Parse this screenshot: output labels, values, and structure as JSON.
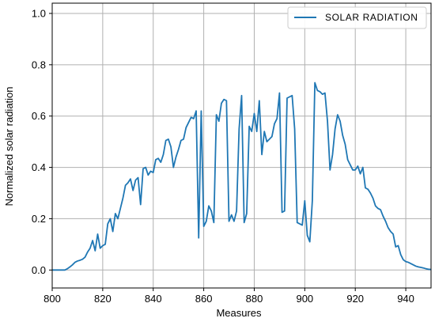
{
  "chart_data": {
    "type": "line",
    "title": "",
    "xlabel": "Measures",
    "ylabel": "Normalized solar radiation",
    "xlim": [
      800,
      950
    ],
    "ylim": [
      -0.07,
      1.04
    ],
    "xticks": [
      800,
      820,
      840,
      860,
      880,
      900,
      920,
      940
    ],
    "xtick_labels": [
      "800",
      "820",
      "840",
      "860",
      "880",
      "900",
      "920",
      "940"
    ],
    "yticks": [
      0.0,
      0.2,
      0.4,
      0.6,
      0.8,
      1.0
    ],
    "ytick_labels": [
      "0.0",
      "0.2",
      "0.4",
      "0.6",
      "0.8",
      "1.0"
    ],
    "grid": true,
    "legend_position": "top-right",
    "series": [
      {
        "name": "SOLAR  RADIATION",
        "color": "#1f77b4",
        "x": [
          800,
          801,
          802,
          803,
          804,
          805,
          806,
          807,
          808,
          809,
          810,
          811,
          812,
          813,
          814,
          815,
          816,
          817,
          818,
          819,
          820,
          821,
          822,
          823,
          824,
          825,
          826,
          827,
          828,
          829,
          830,
          831,
          832,
          833,
          834,
          835,
          836,
          837,
          838,
          839,
          840,
          841,
          842,
          843,
          844,
          845,
          846,
          847,
          848,
          849,
          850,
          851,
          852,
          853,
          854,
          855,
          856,
          857,
          858,
          859,
          860,
          861,
          862,
          863,
          864,
          865,
          866,
          867,
          868,
          869,
          870,
          871,
          872,
          873,
          874,
          875,
          876,
          877,
          878,
          879,
          880,
          881,
          882,
          883,
          884,
          885,
          886,
          887,
          888,
          889,
          890,
          891,
          892,
          893,
          894,
          895,
          896,
          897,
          898,
          899,
          900,
          901,
          902,
          903,
          904,
          905,
          906,
          907,
          908,
          909,
          910,
          911,
          912,
          913,
          914,
          915,
          916,
          917,
          918,
          919,
          920,
          921,
          922,
          923,
          924,
          925,
          926,
          927,
          928,
          929,
          930,
          931,
          932,
          933,
          934,
          935,
          936,
          937,
          938,
          939,
          940,
          941,
          942,
          943,
          944,
          945,
          946,
          947,
          948,
          949,
          950
        ],
        "y": [
          0.0,
          0.0,
          0.0,
          0.0,
          0.0,
          0.0,
          0.005,
          0.012,
          0.02,
          0.03,
          0.035,
          0.038,
          0.042,
          0.05,
          0.07,
          0.085,
          0.115,
          0.075,
          0.14,
          0.085,
          0.095,
          0.1,
          0.18,
          0.2,
          0.15,
          0.22,
          0.2,
          0.24,
          0.28,
          0.33,
          0.34,
          0.355,
          0.31,
          0.35,
          0.36,
          0.255,
          0.395,
          0.4,
          0.37,
          0.385,
          0.38,
          0.43,
          0.435,
          0.42,
          0.45,
          0.505,
          0.51,
          0.48,
          0.4,
          0.44,
          0.47,
          0.505,
          0.51,
          0.555,
          0.575,
          0.595,
          0.59,
          0.62,
          0.125,
          0.62,
          0.17,
          0.19,
          0.25,
          0.23,
          0.185,
          0.605,
          0.58,
          0.65,
          0.665,
          0.66,
          0.19,
          0.215,
          0.19,
          0.23,
          0.55,
          0.68,
          0.185,
          0.22,
          0.56,
          0.54,
          0.61,
          0.54,
          0.66,
          0.45,
          0.54,
          0.5,
          0.51,
          0.52,
          0.57,
          0.59,
          0.69,
          0.225,
          0.23,
          0.67,
          0.675,
          0.68,
          0.55,
          0.185,
          0.18,
          0.175,
          0.27,
          0.135,
          0.11,
          0.27,
          0.73,
          0.7,
          0.695,
          0.685,
          0.69,
          0.58,
          0.39,
          0.45,
          0.55,
          0.605,
          0.58,
          0.525,
          0.49,
          0.43,
          0.41,
          0.39,
          0.39,
          0.405,
          0.375,
          0.4,
          0.32,
          0.315,
          0.3,
          0.28,
          0.25,
          0.24,
          0.235,
          0.21,
          0.19,
          0.165,
          0.15,
          0.14,
          0.09,
          0.095,
          0.06,
          0.04,
          0.033,
          0.03,
          0.025,
          0.02,
          0.015,
          0.012,
          0.01,
          0.008,
          0.005,
          0.003,
          0.002
        ]
      }
    ]
  }
}
